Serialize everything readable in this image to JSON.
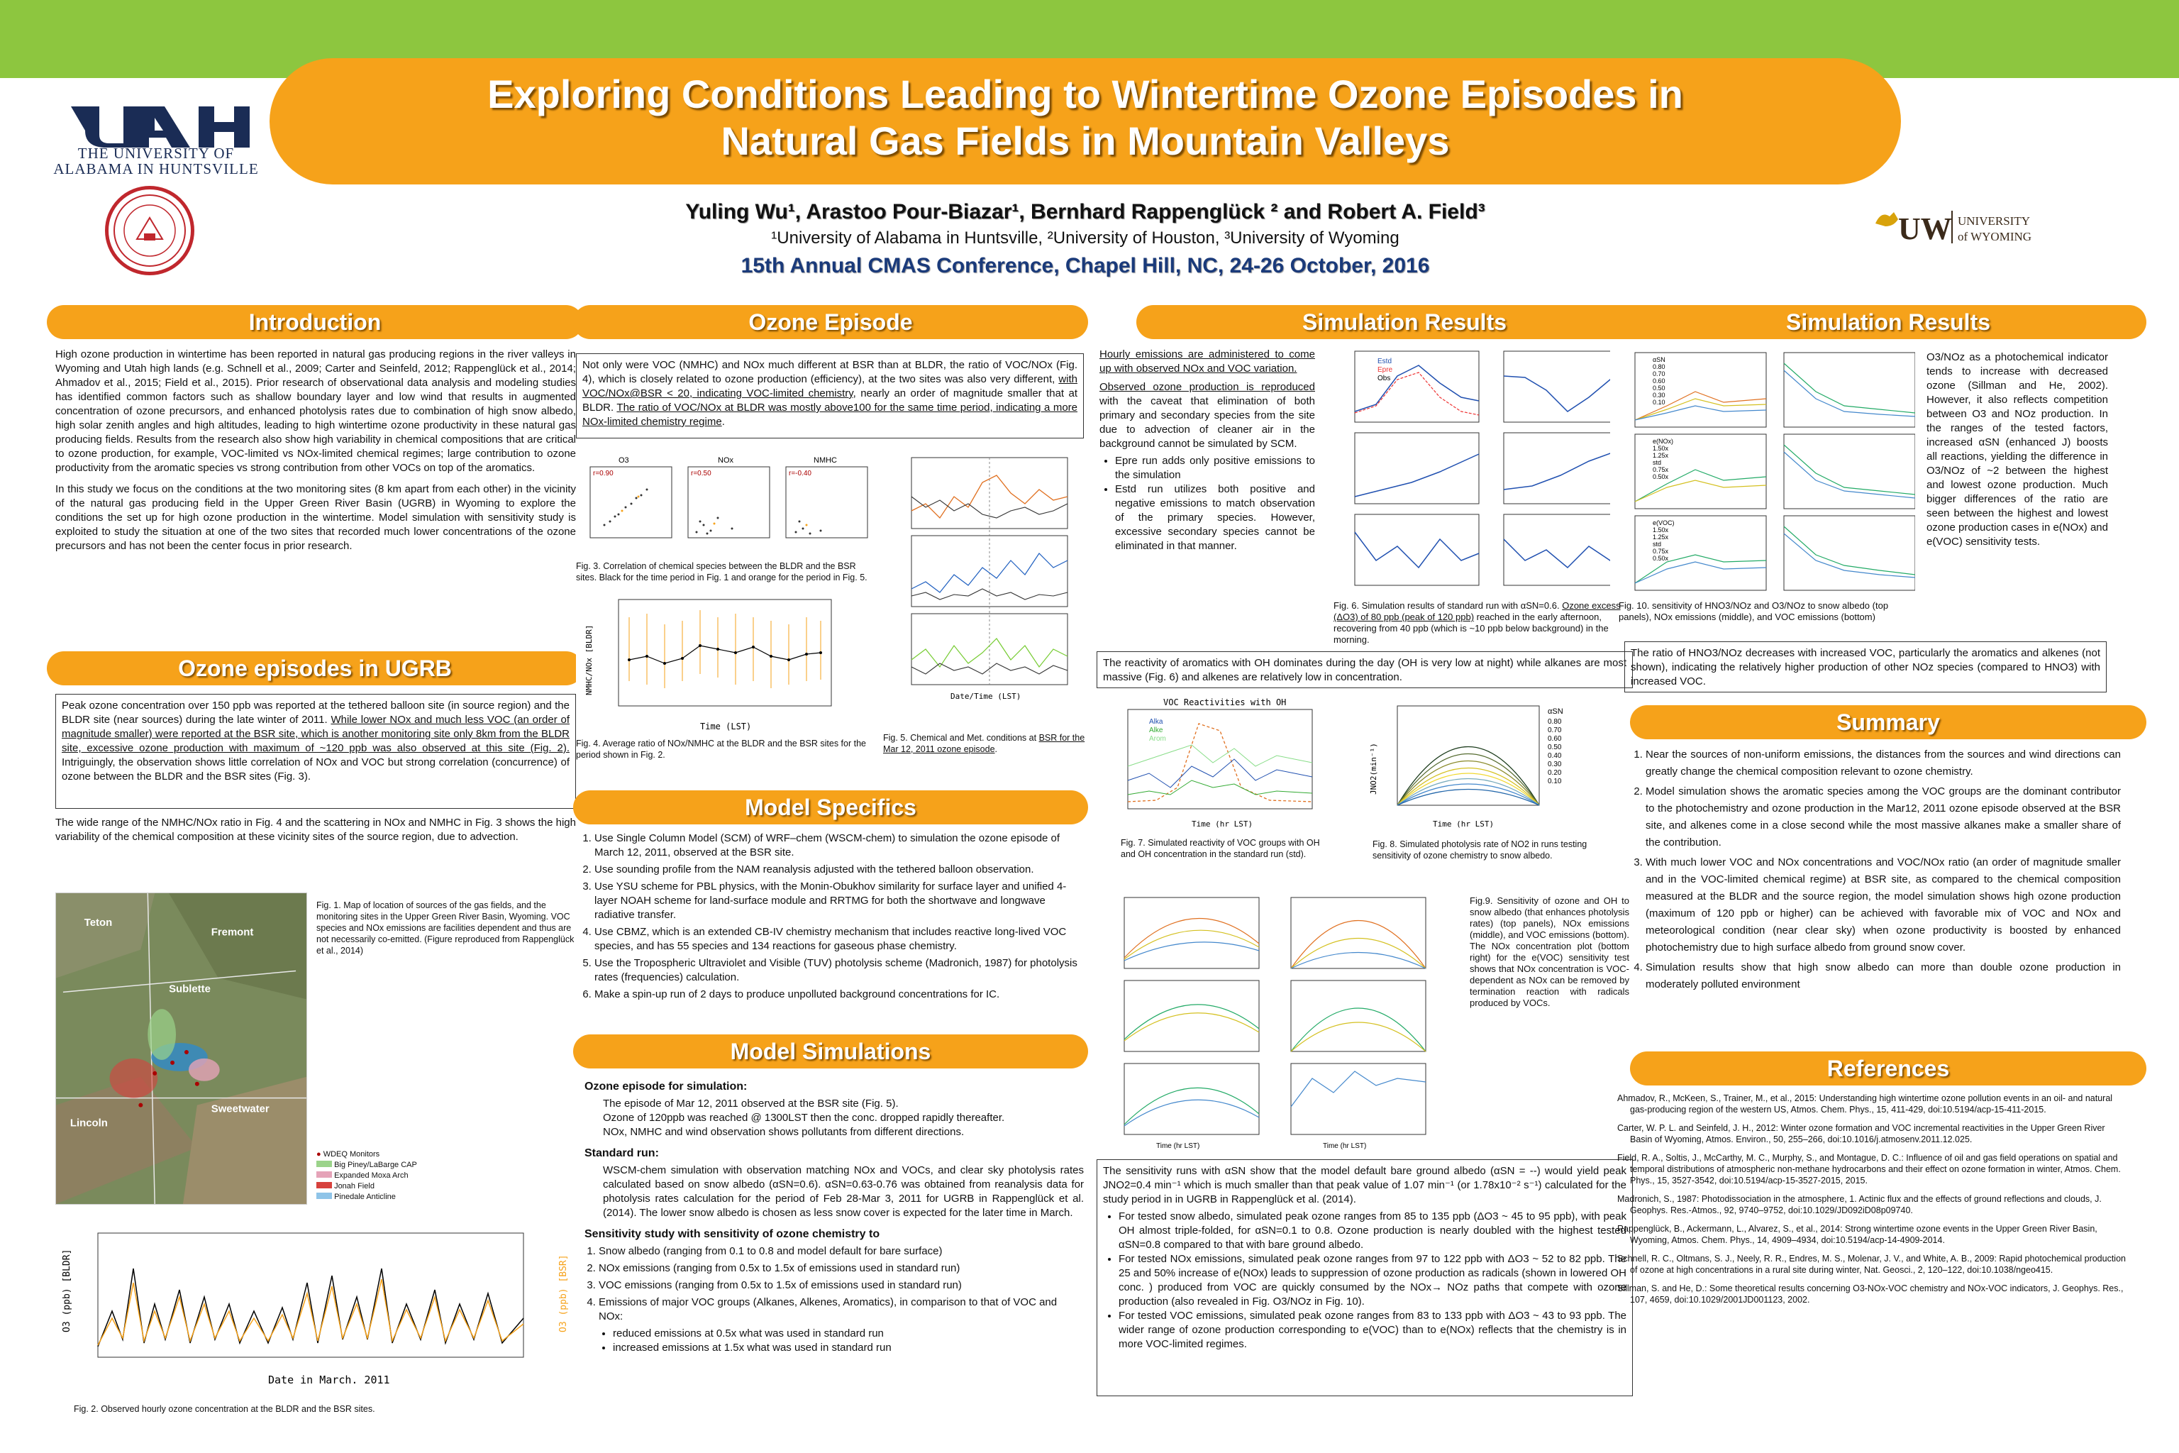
{
  "header": {
    "title_line1": "Exploring Conditions Leading to Wintertime Ozone Episodes in",
    "title_line2": "Natural Gas Fields in Mountain Valleys",
    "authors": "Yuling Wu¹, Arastoo Pour-Biazar¹, Bernhard Rappenglück ² and Robert A. Field³",
    "affiliations": "¹University of Alabama in Huntsville, ²University of Houston, ³University of Wyoming",
    "conference": "15th Annual CMAS Conference, Chapel Hill, NC, 24-26 October, 2016",
    "uah_line1": "THE UNIVERSITY OF",
    "uah_line2": "ALABAMA IN HUNTSVILLE",
    "uw_mark": "UW",
    "uw_line1": "UNIVERSITY",
    "uw_line2": "of WYOMING"
  },
  "colors": {
    "banner": "#8dc63f",
    "accent": "#f6a21a",
    "conference": "#1a3a7a"
  },
  "intro": {
    "heading": "Introduction",
    "p1": "High ozone production in wintertime has been reported in natural gas producing regions in the river valleys in Wyoming and Utah high lands (e.g. Schnell et al., 2009; Carter and Seinfeld, 2012; Rappenglück et al., 2014; Ahmadov et al., 2015; Field et al., 2015). Prior research of observational data analysis and modeling studies has identified common factors such as shallow boundary layer and low wind that results in augmented concentration of ozone precursors, and enhanced photolysis rates due to combination of high snow albedo, high solar zenith angles and high altitudes, leading to high wintertime ozone productivity in these natural gas producing fields. Results from the research also show high variability in chemical compositions that are critical to ozone production, for example, VOC-limited vs NOx-limited chemical regimes; large contribution to ozone productivity from the aromatic species vs strong contribution from other VOCs on top of the aromatics.",
    "p2": "In this study we focus on the conditions at the two monitoring sites (8 km apart from each other) in the vicinity of the natural gas producing field in the Upper Green River Basin (UGRB) in Wyoming to explore the conditions the set up for high ozone production in the wintertime. Model simulation with sensitivity study is exploited to study the situation at one of the two sites that recorded much lower concentrations of the ozone precursors and has not been the center focus in prior research."
  },
  "ugrb": {
    "heading": "Ozone episodes in UGRB",
    "box_a": "Peak ozone concentration over 150 ppb was reported at the tethered balloon site (in source region) and the BLDR site (near sources) during the late winter of 2011. ",
    "box_u": "While lower NOx and much less VOC (an order of magnitude smaller) were reported at the BSR site, which is another monitoring site only 8km from the BLDR site, excessive ozone production with maximum of ~120 ppb was also observed at this site (Fig. 2).",
    "box_b": " Intriguingly, the observation shows little correlation of NOx and VOC but strong correlation (concurrence) of ozone between the BLDR and the BSR sites (Fig. 3).",
    "p2": "The wide range of the NMHC/NOx ratio in Fig. 4 and the scattering in NOx and NMHC in Fig. 3 shows the high variability of the chemical composition at these vicinity sites of the source region, due to advection.",
    "fig1_cap": "Fig. 1. Map of location of sources of the gas fields, and the monitoring sites in the Upper Green River Basin, Wyoming. VOC species and NOx emissions are facilities dependent and thus are not necessarily co-emitted. (Figure reproduced from Rappenglück et al., 2014)",
    "fig2_cap": "Fig. 2. Observed hourly ozone concentration at the BLDR and the BSR sites.",
    "map_labels": [
      "Teton",
      "Fremont",
      "Sublette",
      "Lincoln",
      "Sweetwater"
    ],
    "legend": [
      "WDEQ Monitors",
      "Big Piney/LaBarge CAP",
      "Expanded Moxa Arch",
      "Jonah Field",
      "Pinedale Anticline"
    ],
    "fig2_xlabel": "Date in March. 2011",
    "fig2_ylabel_left": "O3 (ppb) [BLDR]",
    "fig2_ylabel_right": "O3 (ppb) [BSR]"
  },
  "episode": {
    "heading": "Ozone Episode",
    "box_a": "Not only were VOC (NMHC) and NOx much different at BSR than at BLDR, the ratio of VOC/NOx (Fig. 4), which is closely related to ozone production (efficiency), at the two sites was also very different, ",
    "box_u1": "with VOC/NOx@BSR < 20, indicating VOC-limited chemistry",
    "box_b": ", nearly an order of magnitude smaller that at BLDR. ",
    "box_u2": "The ratio of VOC/NOx at BLDR was mostly above100 for the same time period, indicating a more NOx-limited chemistry regime",
    "box_c": ".",
    "fig3_titles": [
      "O3",
      "NOx",
      "NMHC"
    ],
    "fig3_r": [
      "r=0.90",
      "r=0.50",
      "r=-0.40"
    ],
    "fig3_cap": "Fig. 3. Correlation of chemical species between the BLDR and the BSR sites. Black for the time period in Fig. 1 and orange for the period in Fig. 5.",
    "fig4_cap": "Fig. 4. Average ratio of NOx/NMHC at the BLDR and the BSR sites for the period shown in Fig. 2.",
    "fig4_xlabel": "Time (LST)",
    "fig4_ylabel": "NMHC/NOx [BLDR]",
    "fig5_cap_a": "Fig. 5. Chemical and Met. conditions at ",
    "fig5_cap_u": "BSR for the Mar 12, 2011 ozone episode",
    "fig5_cap_b": ".",
    "fig5_xlabel": "Date/Time (LST)"
  },
  "specifics": {
    "heading": "Model Specifics",
    "items": [
      "Use Single Column Model (SCM) of  WRF–chem (WSCM-chem) to simulation the ozone episode of March 12, 2011, observed at the BSR site.",
      "Use sounding profile from the NAM reanalysis adjusted with the tethered balloon observation.",
      "Use YSU scheme for PBL physics, with the Monin-Obukhov similarity for surface layer and unified 4-layer NOAH scheme for land-surface module and RRTMG for both the shortwave and longwave radiative transfer.",
      "Use CBMZ, which is an extended CB-IV chemistry mechanism that includes reactive long-lived VOC species, and has 55 species and 134 reactions for gaseous phase chemistry.",
      "Use the Tropospheric Ultraviolet and Visible (TUV) photolysis scheme (Madronich, 1987) for photolysis rates (frequencies) calculation.",
      "Make a spin-up run of 2 days to produce unpolluted background concentrations for IC."
    ]
  },
  "simulations": {
    "heading": "Model Simulations",
    "sub1": "Ozone episode for simulation:",
    "s1_l1": "The episode of Mar 12, 2011 observed at the BSR site (Fig. 5).",
    "s1_l2": "Ozone of 120ppb was reached @ 1300LST then the conc. dropped rapidly thereafter.",
    "s1_l3": "NOx, NMHC and wind observation shows pollutants from different directions.",
    "sub2": "Standard run:",
    "s2": "WSCM-chem simulation with observation matching NOx and VOCs, and  clear sky photolysis rates calculated based on snow albedo (αSN=0.6). αSN=0.63-0.76 was obtained from reanalysis data for photolysis rates calculation for the period of Feb 28-Mar 3, 2011 for UGRB in Rappenglück et al. (2014). The lower snow albedo is chosen as less snow cover is expected for the later time in March.",
    "sub3": "Sensitivity study with sensitivity of ozone chemistry to",
    "items": [
      "Snow albedo (ranging from 0.1 to 0.8 and model default for bare surface)",
      "NOx emissions (ranging from 0.5x to 1.5x of emissions used in standard run)",
      "VOC emissions (ranging from 0.5x to 1.5x of emissions used in standard run)",
      "Emissions of major VOC groups (Alkanes, Alkenes, Aromatics), in comparison to that of VOC and NOx:"
    ],
    "bullets": [
      "reduced emissions at 0.5x what was used in standard run",
      "increased emissions at 1.5x what was used in standard run"
    ]
  },
  "sim1": {
    "heading": "Simulation Results",
    "box_u1": "Hourly emissions are administered to come up with observed NOx and VOC variation.",
    "box_u2": "Observed ozone production is reproduced",
    "box_a": " with the caveat that elimination of both primary and secondary species from the site due to advection of cleaner air in the background cannot be simulated by SCM.",
    "bullets": [
      "Epre run adds only positive emissions to the simulation",
      "Estd run utilizes both positive and negative emissions to match observation of the primary species. However, excessive secondary species cannot be eliminated in that manner."
    ],
    "fig6_legend": [
      "Estd",
      "Epre",
      "Obs"
    ],
    "fig6_cap_a": "Fig. 6. Simulation results of standard run with αSN=0.6. ",
    "fig6_cap_u": "Ozone excess (ΔO3) of 80 ppb (peak of 120 ppb)",
    "fig6_cap_b": " reached in the early afternoon, recovering from 40 ppb (which is ~10 ppb below background) in the morning.",
    "react_box": "The reactivity of aromatics with OH dominates during the day (OH is very low at night) while alkanes are most massive (Fig. 6) and alkenes are relatively low in concentration.",
    "fig7_title": "VOC Reactivities with OH",
    "fig7_legend": [
      "Alka",
      "Alke",
      "Arom"
    ],
    "fig7_xlabel": "Time (hr LST)",
    "fig7_cap": "Fig. 7. Simulated reactivity of VOC groups with OH and OH concentration in the standard run (std).",
    "fig8_legend_title": "αSN",
    "fig8_legend": [
      "0.80",
      "0.70",
      "0.60",
      "0.50",
      "0.40",
      "0.30",
      "0.20",
      "0.10"
    ],
    "fig8_xlabel": "Time (hr LST)",
    "fig8_ylabel": "JNO2(min⁻¹)",
    "fig8_cap": "Fig. 8. Simulated photolysis rate of NO2 in runs testing sensitivity of ozone chemistry to snow albedo.",
    "fig9_cap": "Fig.9. Sensitivity of ozone and OH to snow albedo (that enhances photolysis rates) (top panels), NOx emissions (middle), and VOC emissions (bottom). The NOx concentration plot (bottom right) for the e(VOC) sensitivity test shows that NOx concentration is VOC-dependent as NOx can be removed by termination reaction with radicals produced by VOCs.",
    "fig9_xlabel": "Time (hr LST)",
    "sens_box_a": "The sensitivity runs with αSN show that the model default bare ground albedo (αSN = --) would yield peak JNO2=0.4 min⁻¹ which is much smaller than that peak value of 1.07 min⁻¹ (or 1.78x10⁻² s⁻¹) calculated for the study period in in UGRB in Rappenglück et al. (2014).",
    "sens_bullets": [
      "For tested snow albedo, simulated peak ozone ranges from 85 to 135 ppb (ΔO3 ~ 45 to 95 ppb), with peak OH almost triple-folded, for αSN=0.1 to 0.8. Ozone production is nearly doubled with the highest tested αSN=0.8 compared to that with bare ground albedo.",
      "For tested NOx emissions, simulated peak ozone ranges from 97 to 122 ppb with ΔO3 ~ 52 to 82 ppb. The 25 and 50% increase of e(NOx) leads to suppression of ozone production as radicals (shown in lowered OH conc. ) produced from VOC are quickly consumed by the NOx→ NOz paths that compete with ozone production (also revealed in Fig. O3/NOz in Fig. 10).",
      "For tested VOC emissions, simulated peak ozone ranges from 83 to 133 ppb with ΔO3 ~ 43 to 93 ppb. The wider range of ozone production corresponding to e(VOC) than to e(NOx) reflects that the chemistry is in more VOC-limited regimes."
    ]
  },
  "sim2": {
    "heading": "Simulation Results",
    "fig10_cap": "Fig. 10. sensitivity of HNO3/NOz and O3/NOz to snow albedo (top panels), NOx emissions (middle), and VOC emissions (bottom)",
    "fig10_legend_snow": [
      "αSN",
      "0.80",
      "0.70",
      "0.60",
      "0.50",
      "0.30",
      "0.10"
    ],
    "fig10_legend_nox": [
      "e(NOx)",
      "1.50x",
      "1.25x",
      "std",
      "0.75x",
      "0.50x"
    ],
    "fig10_legend_voc": [
      "e(VOC)",
      "1.50x",
      "1.25x",
      "std",
      "0.75x",
      "0.50x"
    ],
    "side_text": "O3/NOz as a photochemical indicator tends to increase with decreased ozone (Sillman and He, 2002). However, it also reflects competition between O3 and NOz production. In the ranges of the tested factors, increased αSN (enhanced J) boosts all reactions, yielding the difference in O3/NOz of ~2 between the highest and lowest ozone production. Much bigger differences of the ratio are seen between the highest and lowest ozone production cases in e(NOx) and e(VOC) sensitivity tests.",
    "hno3_box": "The ratio of HNO3/NOz decreases with increased VOC, particularly the aromatics and alkenes (not shown), indicating the relatively higher production of other NOz species (compared to HNO3) with increased VOC."
  },
  "summary": {
    "heading": "Summary",
    "items": [
      "Near the sources of non-uniform emissions, the distances from the sources and wind directions can greatly change the chemical composition relevant to ozone chemistry.",
      "Model simulation shows the aromatic species among the VOC groups are the dominant contributor to the photochemistry and ozone production in the Mar12, 2011 ozone episode observed at the BSR site, and alkenes come in a close second while the most massive alkanes make a smaller share of the contribution.",
      "With much lower VOC and NOx concentrations and VOC/NOx ratio (an order of magnitude smaller and in the VOC-limited chemical regime) at BSR site, as compared to the chemical composition measured at the BLDR and the source region, the model simulation shows high ozone production (maximum of 120 ppb or higher) can be achieved with favorable mix of VOC and NOx and meteorological condition (near clear sky) when ozone productivity is boosted by enhanced photochemistry due to high surface albedo from ground snow cover.",
      "Simulation results show that high snow albedo can more than double ozone production in moderately polluted environment"
    ]
  },
  "references": {
    "heading": "References",
    "items": [
      "Ahmadov, R., McKeen, S., Trainer, M., et al., 2015: Understanding high wintertime ozone pollution events in an oil- and natural gas-producing region of the western US, Atmos. Chem. Phys., 15, 411-429, doi:10.5194/acp-15-411-2015.",
      "Carter, W. P. L. and Seinfeld, J. H., 2012: Winter ozone formation and VOC incremental reactivities in the Upper Green River Basin of Wyoming, Atmos. Environ., 50, 255–266, doi:10.1016/j.atmosenv.2011.12.025.",
      "Field, R. A., Soltis, J., McCarthy, M. C., Murphy, S., and Montague, D. C.: Influence of oil and gas field operations on spatial and temporal distributions of atmospheric non-methane hydrocarbons and their effect on ozone formation in winter, Atmos. Chem. Phys., 15, 3527-3542, doi:10.5194/acp-15-3527-2015, 2015.",
      "Madronich, S., 1987: Photodissociation in the atmosphere, 1. Actinic flux and the effects of ground reflections and clouds, J. Geophys. Res.-Atmos., 92, 9740–9752, doi:10.1029/JD092iD08p09740.",
      "Rappenglück, B., Ackermann, L., Alvarez, S., et al., 2014: Strong wintertime ozone events in the Upper Green River Basin, Wyoming, Atmos. Chem. Phys., 14, 4909–4934, doi:10.5194/acp-14-4909-2014.",
      "Schnell, R. C., Oltmans, S. J., Neely, R. R., Endres, M. S., Molenar, J. V., and White, A. B., 2009: Rapid photochemical production of ozone at high concentrations in a rural site during winter, Nat. Geosci., 2, 120–122, doi:10.1038/ngeo415.",
      "Sillman, S. and He, D.: Some theoretical results concerning O3-NOx-VOC chemistry and NOx-VOC indicators, J. Geophys. Res., 107, 4659, doi:10.1029/2001JD001123, 2002."
    ]
  }
}
